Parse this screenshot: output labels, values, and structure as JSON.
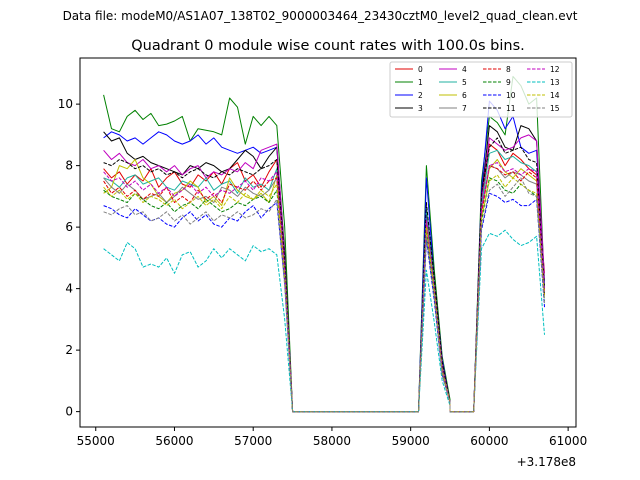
{
  "suptitle": "Data file: modeM0/AS1A07_138T02_9000003464_23430cztM0_level2_quad_clean.evt",
  "chart_data": {
    "type": "line",
    "title": "Quadrant 0 module wise count rates with 100.0s bins.",
    "xlabel": "",
    "ylabel": "",
    "x_offset_label": "+3.178e8",
    "xlim": [
      54800,
      61100
    ],
    "ylim": [
      -0.5,
      11.5
    ],
    "xticks": [
      55000,
      56000,
      57000,
      58000,
      59000,
      60000,
      61000
    ],
    "xtick_labels": [
      "55000",
      "56000",
      "57000",
      "58000",
      "59000",
      "60000",
      "61000"
    ],
    "yticks": [
      0,
      2,
      4,
      6,
      8,
      10
    ],
    "ytick_labels": [
      "0",
      "2",
      "4",
      "6",
      "8",
      "10"
    ],
    "legend_position": "top-right",
    "segments": [
      {
        "x_start": 55100,
        "step": 100,
        "count": 24
      },
      {
        "x_start": 59200,
        "step": 100,
        "count": 4
      },
      {
        "x_start": 59900,
        "step": 100,
        "count": 9
      }
    ],
    "zero_runs": [
      [
        57500,
        59100
      ],
      [
        59500,
        59800
      ]
    ],
    "series": [
      {
        "name": "0",
        "color": "#e00000",
        "dash": "solid",
        "values": [
          7.9,
          7.6,
          7.8,
          7.4,
          7.7,
          7.5,
          7.9,
          7.3,
          7.6,
          7.8,
          7.4,
          7.3,
          7.7,
          7.5,
          7.8,
          7.4,
          7.9,
          8.1,
          7.5,
          7.7,
          7.3,
          7.8,
          8.2,
          5.0,
          6.5,
          4.0,
          1.5,
          0.3,
          6.8,
          8.7,
          8.5,
          8.0,
          8.4,
          8.2,
          7.9,
          7.7,
          4.5
        ]
      },
      {
        "name": "1",
        "color": "#008000",
        "dash": "solid",
        "values": [
          10.3,
          9.2,
          9.1,
          9.6,
          9.8,
          9.5,
          9.7,
          9.3,
          9.35,
          9.45,
          9.6,
          8.8,
          9.2,
          9.15,
          9.1,
          9.0,
          10.2,
          9.9,
          8.7,
          9.6,
          9.3,
          9.6,
          9.3,
          6.0,
          8.0,
          4.6,
          1.8,
          0.4,
          7.5,
          9.6,
          9.4,
          9.0,
          10.9,
          10.6,
          10.0,
          10.2,
          4.0
        ]
      },
      {
        "name": "2",
        "color": "#0000ff",
        "dash": "solid",
        "values": [
          8.9,
          9.1,
          9.0,
          8.8,
          8.9,
          8.7,
          8.9,
          9.1,
          9.0,
          8.8,
          8.7,
          8.8,
          9.0,
          8.7,
          8.9,
          8.6,
          8.5,
          8.4,
          8.5,
          8.6,
          8.4,
          8.5,
          8.6,
          5.1,
          7.6,
          4.3,
          1.7,
          0.3,
          7.2,
          10.1,
          9.8,
          9.2,
          9.6,
          8.6,
          8.4,
          8.5,
          4.2
        ]
      },
      {
        "name": "3",
        "color": "#000000",
        "dash": "solid",
        "values": [
          9.1,
          8.8,
          8.9,
          8.4,
          8.2,
          8.3,
          8.1,
          8.0,
          7.9,
          7.8,
          7.7,
          8.0,
          7.9,
          8.1,
          8.0,
          7.8,
          7.9,
          8.2,
          8.5,
          8.3,
          7.9,
          8.3,
          8.6,
          5.2,
          6.6,
          4.4,
          1.6,
          0.3,
          7.0,
          9.3,
          9.1,
          8.6,
          8.5,
          9.3,
          9.2,
          8.8,
          3.8
        ]
      },
      {
        "name": "4",
        "color": "#c000c0",
        "dash": "solid",
        "values": [
          8.5,
          8.2,
          8.4,
          8.1,
          8.0,
          8.2,
          7.9,
          8.0,
          7.8,
          8.0,
          7.7,
          7.9,
          8.0,
          7.6,
          7.8,
          7.7,
          7.9,
          7.8,
          8.1,
          7.9,
          8.5,
          8.6,
          8.7,
          5.0,
          6.4,
          4.2,
          1.6,
          0.3,
          6.9,
          8.9,
          8.7,
          8.5,
          8.6,
          8.9,
          9.0,
          8.8,
          4.3
        ]
      },
      {
        "name": "5",
        "color": "#20b2a0",
        "dash": "solid",
        "values": [
          7.6,
          7.5,
          7.3,
          7.6,
          7.7,
          7.4,
          7.5,
          7.6,
          7.3,
          7.2,
          7.5,
          7.4,
          7.3,
          7.6,
          7.2,
          7.4,
          7.5,
          7.1,
          7.6,
          7.3,
          7.4,
          7.2,
          7.9,
          4.8,
          6.6,
          4.3,
          1.5,
          0.3,
          6.7,
          8.4,
          8.5,
          8.2,
          8.3,
          8.1,
          8.0,
          7.8,
          4.1
        ]
      },
      {
        "name": "6",
        "color": "#bfbf00",
        "dash": "solid",
        "values": [
          7.1,
          7.3,
          8.0,
          7.9,
          8.2,
          7.6,
          7.4,
          7.0,
          6.8,
          7.1,
          7.2,
          7.5,
          7.3,
          6.8,
          7.0,
          6.7,
          7.6,
          7.2,
          7.0,
          6.9,
          7.1,
          6.8,
          7.7,
          4.6,
          6.2,
          4.0,
          1.4,
          0.3,
          6.5,
          7.9,
          8.2,
          7.8,
          7.6,
          7.9,
          7.7,
          7.5,
          3.9
        ]
      },
      {
        "name": "7",
        "color": "#808080",
        "dash": "solid",
        "values": [
          7.6,
          7.3,
          7.1,
          7.4,
          7.2,
          6.9,
          7.0,
          7.1,
          6.8,
          7.0,
          7.3,
          7.1,
          6.9,
          7.0,
          6.8,
          7.3,
          7.2,
          7.0,
          7.3,
          7.1,
          7.0,
          7.2,
          7.6,
          4.6,
          6.1,
          4.1,
          1.5,
          0.3,
          6.6,
          8.0,
          7.9,
          7.6,
          7.8,
          7.7,
          7.5,
          7.4,
          4.0
        ]
      },
      {
        "name": "8",
        "color": "#e00000",
        "dash": "dashed",
        "values": [
          7.5,
          7.1,
          7.3,
          7.0,
          7.2,
          6.9,
          7.1,
          7.0,
          7.3,
          6.8,
          7.0,
          6.8,
          7.2,
          6.9,
          7.1,
          6.8,
          7.4,
          7.3,
          7.2,
          7.5,
          7.2,
          7.5,
          7.6,
          4.5,
          6.0,
          4.0,
          1.4,
          0.3,
          6.4,
          8.0,
          7.9,
          7.7,
          7.8,
          7.5,
          7.8,
          7.6,
          3.8
        ]
      },
      {
        "name": "9",
        "color": "#008000",
        "dash": "dashed",
        "values": [
          7.2,
          7.0,
          6.9,
          6.8,
          7.1,
          6.9,
          6.7,
          6.6,
          6.8,
          6.5,
          6.7,
          6.8,
          6.6,
          6.9,
          6.7,
          6.5,
          6.6,
          6.8,
          6.7,
          6.9,
          7.0,
          6.8,
          7.2,
          4.4,
          5.8,
          3.8,
          1.3,
          0.3,
          6.2,
          7.6,
          7.5,
          7.2,
          7.1,
          7.4,
          7.2,
          7.0,
          3.6
        ]
      },
      {
        "name": "10",
        "color": "#0000ff",
        "dash": "dashed",
        "values": [
          6.7,
          6.6,
          6.4,
          6.3,
          6.6,
          6.4,
          6.2,
          6.3,
          6.1,
          6.0,
          6.3,
          6.5,
          6.2,
          6.4,
          6.1,
          6.0,
          6.3,
          6.2,
          6.5,
          6.7,
          6.3,
          6.6,
          6.8,
          4.2,
          5.6,
          3.6,
          1.2,
          0.3,
          5.9,
          7.1,
          7.0,
          6.8,
          6.9,
          6.7,
          6.7,
          6.9,
          3.4
        ]
      },
      {
        "name": "11",
        "color": "#000000",
        "dash": "dashed",
        "values": [
          8.1,
          8.0,
          8.2,
          8.1,
          7.9,
          8.0,
          7.8,
          7.9,
          7.7,
          7.8,
          7.6,
          7.8,
          7.9,
          7.7,
          7.6,
          7.8,
          7.7,
          7.9,
          7.8,
          7.7,
          7.9,
          8.0,
          8.2,
          4.9,
          6.8,
          4.3,
          1.6,
          0.3,
          7.1,
          8.6,
          8.9,
          8.4,
          8.5,
          8.6,
          8.2,
          8.1,
          4.0
        ]
      },
      {
        "name": "12",
        "color": "#c000c0",
        "dash": "dashed",
        "values": [
          7.8,
          7.5,
          7.6,
          7.3,
          7.5,
          7.2,
          7.4,
          7.1,
          7.3,
          7.0,
          7.2,
          7.4,
          7.1,
          7.3,
          7.0,
          7.2,
          7.1,
          7.3,
          7.5,
          7.2,
          7.6,
          7.5,
          7.8,
          4.6,
          6.2,
          4.0,
          1.4,
          0.3,
          6.6,
          8.0,
          8.1,
          7.8,
          7.9,
          7.7,
          7.9,
          7.8,
          3.9
        ]
      },
      {
        "name": "13",
        "color": "#00bfbf",
        "dash": "dashed",
        "values": [
          5.3,
          5.1,
          4.9,
          5.5,
          5.3,
          4.7,
          4.8,
          4.7,
          5.0,
          4.5,
          5.1,
          5.2,
          4.7,
          4.9,
          5.3,
          5.0,
          5.3,
          5.1,
          4.9,
          5.4,
          5.2,
          5.3,
          5.1,
          3.0,
          4.6,
          2.9,
          1.0,
          0.2,
          5.3,
          5.8,
          5.7,
          5.9,
          5.6,
          5.4,
          5.5,
          5.7,
          2.5
        ]
      },
      {
        "name": "14",
        "color": "#bfbf00",
        "dash": "dashed",
        "values": [
          7.3,
          7.0,
          7.2,
          6.9,
          7.1,
          6.8,
          7.0,
          6.9,
          6.7,
          6.9,
          6.6,
          6.8,
          7.0,
          6.7,
          6.9,
          6.6,
          7.0,
          6.8,
          7.1,
          6.9,
          7.2,
          7.0,
          7.4,
          4.4,
          6.0,
          3.9,
          1.3,
          0.3,
          6.3,
          7.5,
          7.7,
          7.3,
          7.6,
          7.4,
          7.2,
          7.1,
          3.7
        ]
      },
      {
        "name": "15",
        "color": "#808080",
        "dash": "dashed",
        "values": [
          6.5,
          6.4,
          6.6,
          6.7,
          6.4,
          6.5,
          6.2,
          6.3,
          6.5,
          6.2,
          6.4,
          6.1,
          6.3,
          6.5,
          6.2,
          6.4,
          6.3,
          6.5,
          6.3,
          6.4,
          6.6,
          6.5,
          6.9,
          4.1,
          5.7,
          3.7,
          1.2,
          0.3,
          6.0,
          7.2,
          7.4,
          7.0,
          7.3,
          7.6,
          7.1,
          7.0,
          3.5
        ]
      }
    ]
  }
}
